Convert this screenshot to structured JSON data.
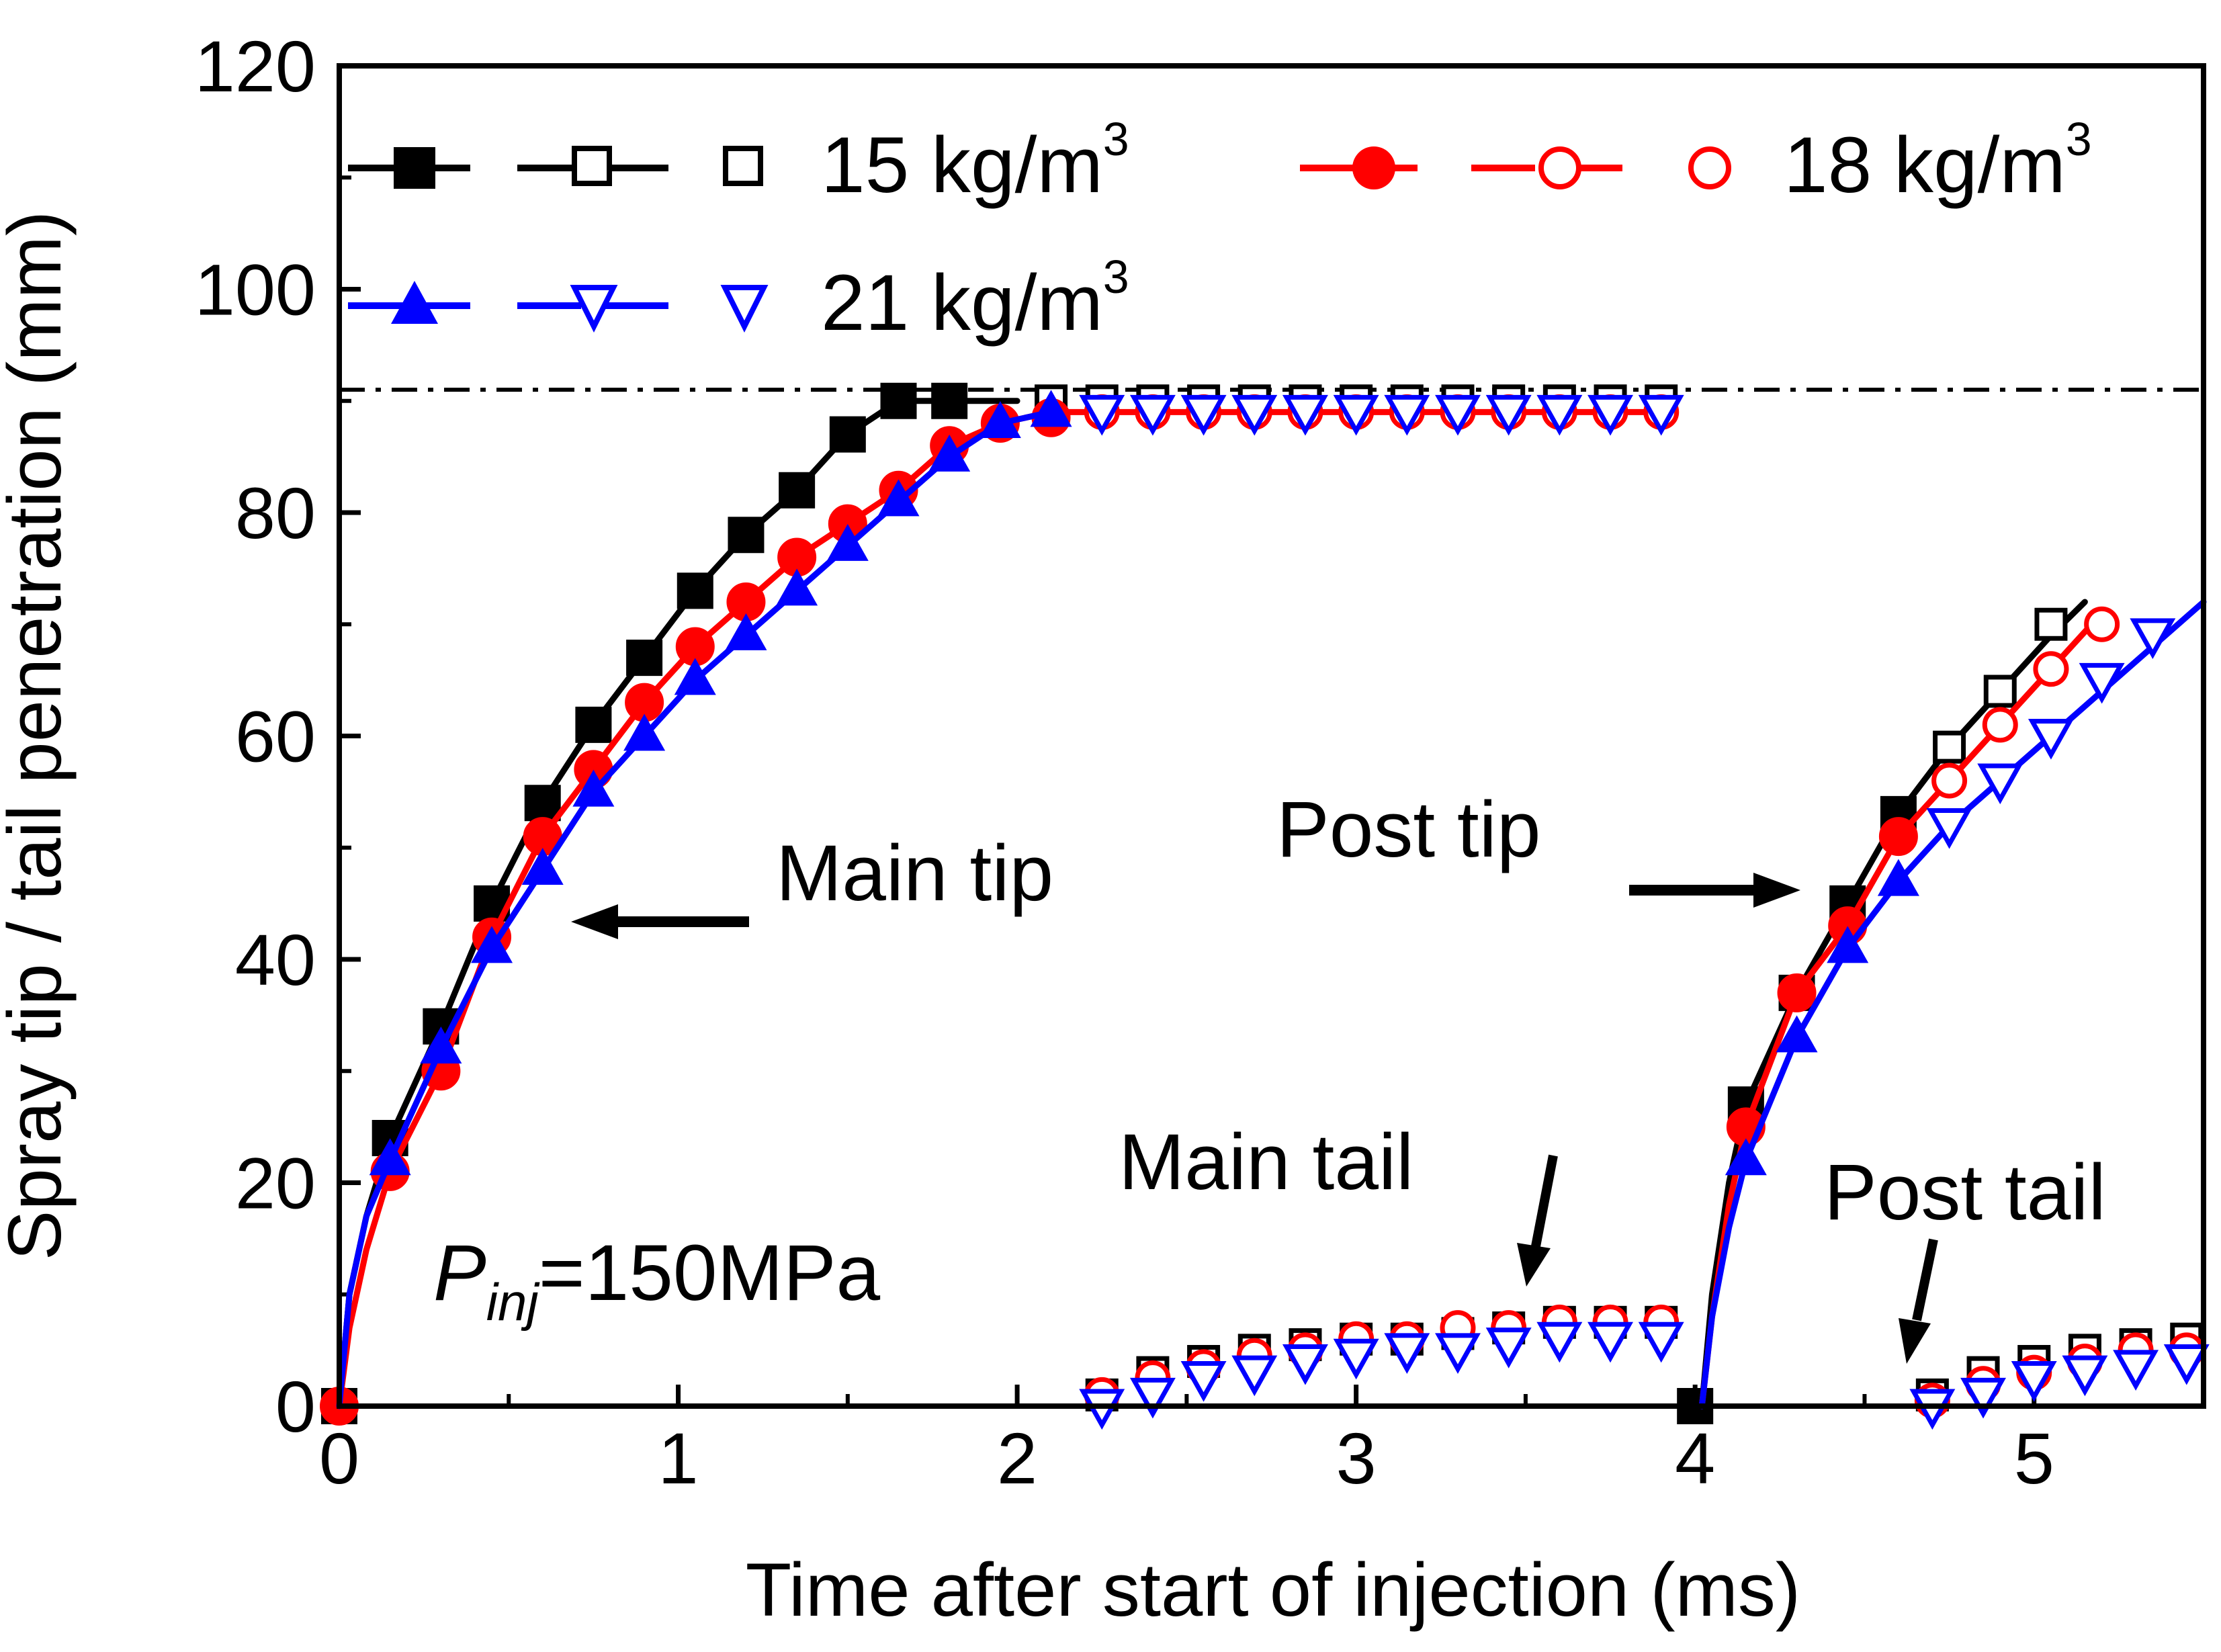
{
  "chart_data": {
    "type": "line",
    "xlabel": "Time after start of injection (ms)",
    "ylabel": "Spray tip / tail penetration (mm)",
    "xlim": [
      0,
      5.5
    ],
    "ylim": [
      0,
      120
    ],
    "xticks": [
      "0",
      "1",
      "2",
      "3",
      "4",
      "5"
    ],
    "yticks": [
      "0",
      "20",
      "40",
      "60",
      "80",
      "100",
      "120"
    ],
    "reference_line": {
      "y": 91,
      "style": "dash-dot"
    },
    "annotations": {
      "main_tip": "Main tip",
      "post_tip": "Post tip",
      "main_tail": "Main tail",
      "post_tail": "Post tail",
      "pressure_symbol": "P",
      "pressure_subscript": "inj",
      "pressure_value": "=150MPa"
    },
    "legend": [
      {
        "label": "15 kg/m",
        "sup": "3",
        "color": "#000000",
        "marker": "square"
      },
      {
        "label": "18 kg/m",
        "sup": "3",
        "color": "#ff0000",
        "marker": "circle"
      },
      {
        "label": "21 kg/m",
        "sup": "3",
        "color": "#0000ff",
        "marker": "triangle"
      }
    ],
    "series": [
      {
        "name": "15 kg/m3",
        "color": "#000000",
        "marker": "square",
        "main_tip_line": {
          "x": [
            0,
            0.03,
            0.08,
            0.15,
            0.3,
            0.45,
            0.6,
            0.75,
            0.9,
            1.05,
            1.2,
            1.35,
            1.5,
            1.65,
            1.8,
            1.9,
            2.0
          ],
          "y": [
            0,
            10,
            17,
            24,
            34,
            45,
            54,
            61,
            67,
            73,
            78,
            82,
            87,
            90,
            90,
            90,
            90
          ]
        },
        "main_tip_markers": {
          "x": [
            0,
            0.15,
            0.3,
            0.45,
            0.6,
            0.75,
            0.9,
            1.05,
            1.2,
            1.35,
            1.5,
            1.65,
            1.8
          ],
          "y": [
            0,
            24,
            34,
            45,
            54,
            61,
            67,
            73,
            78,
            82,
            87,
            90,
            90
          ]
        },
        "main_tip_open": {
          "x": [
            2.1,
            2.25,
            2.4,
            2.55,
            2.7,
            2.85,
            3.0,
            3.15,
            3.3,
            3.45,
            3.6,
            3.75,
            3.9
          ],
          "y": [
            90,
            90,
            90,
            90,
            90,
            90,
            90,
            90,
            90,
            90,
            90,
            90,
            90
          ]
        },
        "post_tip_line": {
          "x": [
            4.02,
            4.05,
            4.1,
            4.15,
            4.3,
            4.45,
            4.6,
            4.75,
            4.9,
            5.05,
            5.15
          ],
          "y": [
            0,
            10,
            20,
            27,
            37,
            45,
            53,
            59,
            64,
            69,
            72
          ]
        },
        "post_tip_markers": {
          "x": [
            4.0,
            4.15,
            4.3,
            4.45,
            4.6
          ],
          "y": [
            0,
            27,
            37,
            45,
            53
          ]
        },
        "post_tip_open": {
          "x": [
            4.75,
            4.9,
            5.05
          ],
          "y": [
            59,
            64,
            70
          ]
        },
        "tail_open": {
          "x": [
            2.25,
            2.4,
            2.55,
            2.7,
            2.85,
            3.0,
            3.15,
            3.3,
            3.45,
            3.6,
            3.75,
            3.9,
            4.7,
            4.85,
            5.0,
            5.15,
            5.3,
            5.45
          ],
          "y": [
            1,
            3,
            4,
            5,
            5.5,
            6,
            6,
            6.5,
            7,
            7.5,
            7.5,
            7.5,
            1,
            3,
            4,
            5,
            5.5,
            6
          ]
        }
      },
      {
        "name": "18 kg/m3",
        "color": "#ff0000",
        "marker": "circle",
        "main_tip_line": {
          "x": [
            0,
            0.03,
            0.08,
            0.15,
            0.3,
            0.45,
            0.6,
            0.75,
            0.9,
            1.05,
            1.2,
            1.35,
            1.5,
            1.65,
            1.8,
            1.95,
            2.1,
            2.4,
            3.0,
            3.9
          ],
          "y": [
            0,
            7,
            14,
            21,
            30,
            42,
            51,
            57,
            63,
            68,
            72,
            76,
            79,
            82,
            86,
            88,
            89,
            89,
            89,
            89
          ]
        },
        "main_tip_markers": {
          "x": [
            0,
            0.15,
            0.3,
            0.45,
            0.6,
            0.75,
            0.9,
            1.05,
            1.2,
            1.35,
            1.5,
            1.65,
            1.8,
            1.95,
            2.1
          ],
          "y": [
            0,
            21,
            30,
            42,
            51,
            57,
            63,
            68,
            72,
            76,
            79,
            82,
            86,
            88,
            88.5
          ]
        },
        "main_tip_open": {
          "x": [
            2.25,
            2.4,
            2.55,
            2.7,
            2.85,
            3.0,
            3.15,
            3.3,
            3.45,
            3.6,
            3.75,
            3.9
          ],
          "y": [
            89,
            89,
            89,
            89,
            89,
            89,
            89,
            89,
            89,
            89,
            89,
            89
          ]
        },
        "post_tip_line": {
          "x": [
            4.02,
            4.05,
            4.1,
            4.15,
            4.3,
            4.45,
            4.6,
            4.75,
            4.9,
            5.05,
            5.2
          ],
          "y": [
            0,
            8,
            18,
            25,
            37,
            43,
            51,
            56,
            61,
            66,
            71
          ]
        },
        "post_tip_markers": {
          "x": [
            4.15,
            4.3,
            4.45,
            4.6
          ],
          "y": [
            25,
            37,
            43,
            51
          ]
        },
        "post_tip_open": {
          "x": [
            4.75,
            4.9,
            5.05,
            5.2
          ],
          "y": [
            56,
            61,
            66,
            70
          ]
        },
        "tail_open": {
          "x": [
            2.25,
            2.4,
            2.55,
            2.7,
            2.85,
            3.0,
            3.15,
            3.3,
            3.45,
            3.6,
            3.75,
            3.9,
            4.7,
            4.85,
            5.0,
            5.15,
            5.3,
            5.45
          ],
          "y": [
            1,
            2.5,
            3.5,
            4.5,
            5,
            6,
            6,
            7,
            7,
            7.5,
            7.5,
            7.5,
            0.5,
            2,
            3,
            4,
            5,
            5
          ]
        }
      },
      {
        "name": "21 kg/m3",
        "color": "#0000ff",
        "marker": "triangle",
        "main_tip_line": {
          "x": [
            0,
            0.03,
            0.08,
            0.15,
            0.3,
            0.45,
            0.6,
            0.75,
            0.9,
            1.05,
            1.2,
            1.35,
            1.5,
            1.65,
            1.8,
            1.95,
            2.1
          ],
          "y": [
            0,
            10,
            17,
            22,
            32,
            41,
            48,
            55,
            60,
            65,
            69,
            73,
            77,
            81,
            85,
            88,
            89
          ]
        },
        "main_tip_markers": {
          "x": [
            0.15,
            0.3,
            0.45,
            0.6,
            0.75,
            0.9,
            1.05,
            1.2,
            1.35,
            1.5,
            1.65,
            1.8,
            1.95,
            2.1
          ],
          "y": [
            22,
            32,
            41,
            48,
            55,
            60,
            65,
            69,
            73,
            77,
            81,
            85,
            88,
            89
          ]
        },
        "main_tip_open": {
          "x": [
            2.25,
            2.4,
            2.55,
            2.7,
            2.85,
            3.0,
            3.15,
            3.3,
            3.45,
            3.6,
            3.75,
            3.9
          ],
          "y": [
            89,
            89,
            89,
            89,
            89,
            89,
            89,
            89,
            89,
            89,
            89,
            89
          ]
        },
        "post_tip_line": {
          "x": [
            4.02,
            4.05,
            4.1,
            4.15,
            4.3,
            4.45,
            4.6,
            4.75,
            4.9,
            5.05,
            5.2,
            5.35,
            5.5
          ],
          "y": [
            0,
            8,
            16,
            22,
            33,
            41,
            47,
            52,
            56,
            60,
            64,
            68,
            72
          ]
        },
        "post_tip_markers": {
          "x": [
            4.15,
            4.3,
            4.45,
            4.6
          ],
          "y": [
            22,
            33,
            41,
            47
          ]
        },
        "post_tip_open": {
          "x": [
            4.75,
            4.9,
            5.05,
            5.2,
            5.35
          ],
          "y": [
            52,
            56,
            60,
            65,
            69
          ]
        },
        "tail_open": {
          "x": [
            2.25,
            2.4,
            2.55,
            2.7,
            2.85,
            3.0,
            3.15,
            3.3,
            3.45,
            3.6,
            3.75,
            3.9,
            4.7,
            4.85,
            5.0,
            5.15,
            5.3,
            5.45
          ],
          "y": [
            0,
            1,
            2.5,
            3,
            4,
            4.5,
            5,
            5,
            5.5,
            6,
            6,
            6,
            0,
            1,
            2.5,
            3,
            3.5,
            4
          ]
        }
      }
    ]
  }
}
